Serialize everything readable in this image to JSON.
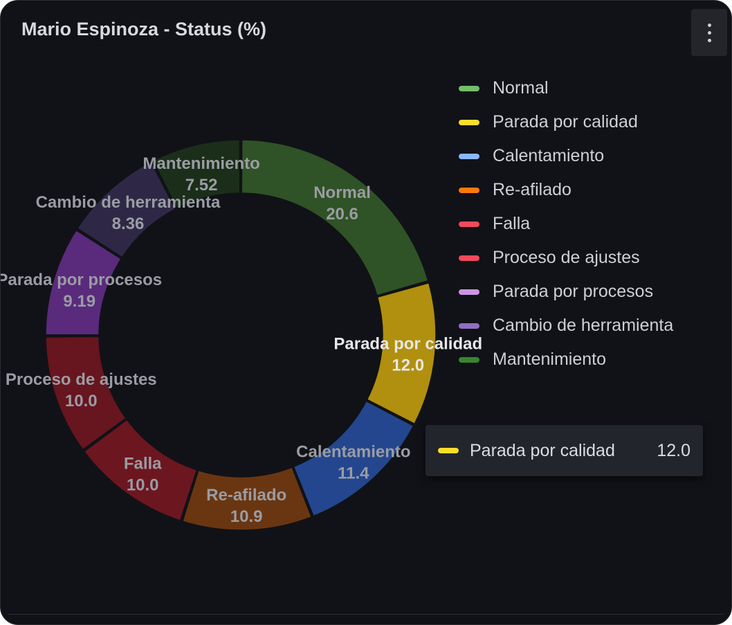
{
  "panel": {
    "title": "Mario Espinoza - Status (%)",
    "menu_icon": "kebab-menu-icon"
  },
  "chart_data": {
    "type": "pie",
    "donut": true,
    "title": "Mario Espinoza - Status (%)",
    "legend_position": "right",
    "slices": [
      {
        "name": "Normal",
        "value": 20.6,
        "label": "20.6",
        "color": "#73bf69",
        "fill": "#2f5226"
      },
      {
        "name": "Parada por calidad",
        "value": 12.0,
        "label": "12.0",
        "color": "#fade2a",
        "fill": "#b0900e",
        "highlighted": true
      },
      {
        "name": "Calentamiento",
        "value": 11.4,
        "label": "11.4",
        "color": "#8ab8ff",
        "fill": "#23468e"
      },
      {
        "name": "Re-afilado",
        "value": 10.9,
        "label": "10.9",
        "color": "#ff780a",
        "fill": "#6a3611"
      },
      {
        "name": "Falla",
        "value": 10.0,
        "label": "10.0",
        "color": "#f2495c",
        "fill": "#6c1620"
      },
      {
        "name": "Proceso de ajustes",
        "value": 10.0,
        "label": "10.0",
        "color": "#f2495c",
        "fill": "#67151f"
      },
      {
        "name": "Parada por procesos",
        "value": 9.19,
        "label": "9.19",
        "color": "#ca95e5",
        "fill": "#5a2a7d"
      },
      {
        "name": "Cambio de herramienta",
        "value": 8.36,
        "label": "8.36",
        "color": "#8f6fc2",
        "fill": "#2e2846"
      },
      {
        "name": "Mantenimiento",
        "value": 7.52,
        "label": "7.52",
        "color": "#37872d",
        "fill": "#1b2e1a"
      }
    ]
  },
  "tooltip": {
    "label": "Parada por calidad",
    "value": "12.0",
    "color": "#fade2a"
  }
}
